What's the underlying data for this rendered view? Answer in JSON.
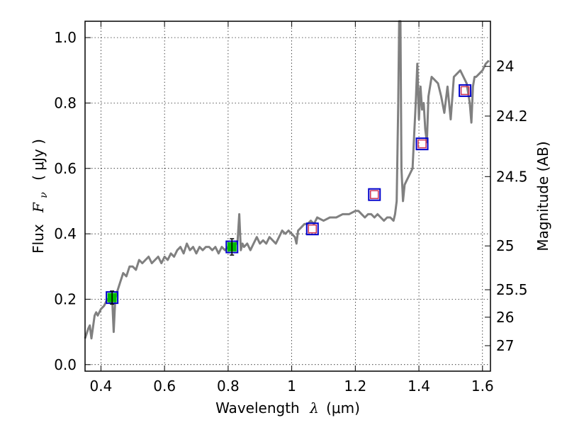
{
  "chart_data": {
    "type": "scatter",
    "xlabel": "Wavelength",
    "xlabel_symbol": "λ",
    "xlabel_unit": "(μm)",
    "ylabel": "Flux",
    "ylabel_symbol": "F",
    "ylabel_subscript": "ν",
    "ylabel_unit": "( μJy )",
    "y2label": "Magnitude (AB)",
    "xlim": [
      0.35,
      1.625
    ],
    "ylim": [
      -0.02,
      1.05
    ],
    "grid": true,
    "x_ticks": [
      0.4,
      0.6,
      0.8,
      1.0,
      1.2,
      1.4,
      1.6
    ],
    "x_tick_labels": [
      "0.4",
      "0.6",
      "0.8",
      "1",
      "1.2",
      "1.4",
      "1.6"
    ],
    "y_ticks": [
      0.0,
      0.2,
      0.4,
      0.6,
      0.8,
      1.0
    ],
    "y_tick_labels": [
      "0.0",
      "0.2",
      "0.4",
      "0.6",
      "0.8",
      "1.0"
    ],
    "y2_ticks": [
      {
        "flux": 0.912,
        "label": "24"
      },
      {
        "flux": 0.76,
        "label": "24.2"
      },
      {
        "flux": 0.575,
        "label": "24.5"
      },
      {
        "flux": 0.363,
        "label": "25"
      },
      {
        "flux": 0.229,
        "label": "25.5"
      },
      {
        "flux": 0.145,
        "label": "26"
      },
      {
        "flux": 0.058,
        "label": "27"
      }
    ],
    "colors": {
      "model": "#808080",
      "box": "#0000cc",
      "inner": "#cc3355",
      "detected": "#00bb00"
    },
    "model_spectrum": {
      "x": [
        0.35,
        0.36,
        0.365,
        0.37,
        0.38,
        0.385,
        0.39,
        0.4,
        0.41,
        0.42,
        0.43,
        0.435,
        0.44,
        0.445,
        0.45,
        0.46,
        0.47,
        0.48,
        0.49,
        0.5,
        0.51,
        0.52,
        0.53,
        0.54,
        0.55,
        0.56,
        0.57,
        0.58,
        0.59,
        0.6,
        0.61,
        0.62,
        0.63,
        0.64,
        0.65,
        0.66,
        0.67,
        0.68,
        0.69,
        0.7,
        0.71,
        0.72,
        0.73,
        0.74,
        0.75,
        0.76,
        0.77,
        0.78,
        0.79,
        0.8,
        0.81,
        0.82,
        0.83,
        0.835,
        0.84,
        0.845,
        0.85,
        0.86,
        0.87,
        0.88,
        0.89,
        0.9,
        0.91,
        0.92,
        0.93,
        0.94,
        0.95,
        0.96,
        0.97,
        0.98,
        0.99,
        1.0,
        1.01,
        1.015,
        1.02,
        1.03,
        1.04,
        1.05,
        1.06,
        1.07,
        1.08,
        1.1,
        1.12,
        1.14,
        1.16,
        1.18,
        1.2,
        1.21,
        1.22,
        1.23,
        1.24,
        1.25,
        1.26,
        1.27,
        1.28,
        1.29,
        1.3,
        1.31,
        1.32,
        1.325,
        1.33,
        1.335,
        1.338,
        1.342,
        1.345,
        1.35,
        1.355,
        1.36,
        1.37,
        1.38,
        1.385,
        1.39,
        1.395,
        1.4,
        1.405,
        1.41,
        1.415,
        1.42,
        1.425,
        1.43,
        1.44,
        1.45,
        1.46,
        1.47,
        1.48,
        1.49,
        1.5,
        1.51,
        1.52,
        1.53,
        1.54,
        1.55,
        1.56,
        1.565,
        1.57,
        1.575,
        1.58,
        1.59,
        1.6,
        1.61,
        1.62
      ],
      "y": [
        0.08,
        0.11,
        0.12,
        0.08,
        0.15,
        0.16,
        0.15,
        0.17,
        0.18,
        0.2,
        0.19,
        0.21,
        0.1,
        0.2,
        0.22,
        0.25,
        0.28,
        0.27,
        0.3,
        0.3,
        0.29,
        0.32,
        0.31,
        0.32,
        0.33,
        0.31,
        0.32,
        0.33,
        0.31,
        0.33,
        0.32,
        0.34,
        0.33,
        0.35,
        0.36,
        0.34,
        0.37,
        0.35,
        0.36,
        0.34,
        0.36,
        0.35,
        0.36,
        0.36,
        0.35,
        0.36,
        0.34,
        0.36,
        0.35,
        0.36,
        0.37,
        0.36,
        0.38,
        0.46,
        0.35,
        0.37,
        0.36,
        0.37,
        0.35,
        0.37,
        0.39,
        0.37,
        0.38,
        0.37,
        0.39,
        0.38,
        0.37,
        0.39,
        0.41,
        0.4,
        0.41,
        0.4,
        0.39,
        0.37,
        0.41,
        0.42,
        0.43,
        0.43,
        0.44,
        0.43,
        0.45,
        0.44,
        0.45,
        0.45,
        0.46,
        0.46,
        0.47,
        0.47,
        0.46,
        0.45,
        0.46,
        0.46,
        0.45,
        0.46,
        0.45,
        0.44,
        0.45,
        0.45,
        0.44,
        0.46,
        0.5,
        0.8,
        1.05,
        1.05,
        0.6,
        0.5,
        0.55,
        0.56,
        0.58,
        0.6,
        0.7,
        0.8,
        0.92,
        0.75,
        0.85,
        0.78,
        0.8,
        0.72,
        0.68,
        0.82,
        0.88,
        0.87,
        0.86,
        0.82,
        0.77,
        0.85,
        0.75,
        0.88,
        0.89,
        0.9,
        0.88,
        0.86,
        0.8,
        0.74,
        0.85,
        0.88,
        0.88,
        0.89,
        0.9,
        0.92,
        0.93
      ]
    },
    "points": [
      {
        "x": 0.435,
        "y": 0.205,
        "detected": true,
        "err": 0.02
      },
      {
        "x": 0.812,
        "y": 0.36,
        "detected": true,
        "err": 0.025
      },
      {
        "x": 1.065,
        "y": 0.415,
        "detected": false
      },
      {
        "x": 1.26,
        "y": 0.52,
        "detected": false
      },
      {
        "x": 1.41,
        "y": 0.675,
        "detected": false
      },
      {
        "x": 1.545,
        "y": 0.838,
        "detected": false
      }
    ]
  }
}
